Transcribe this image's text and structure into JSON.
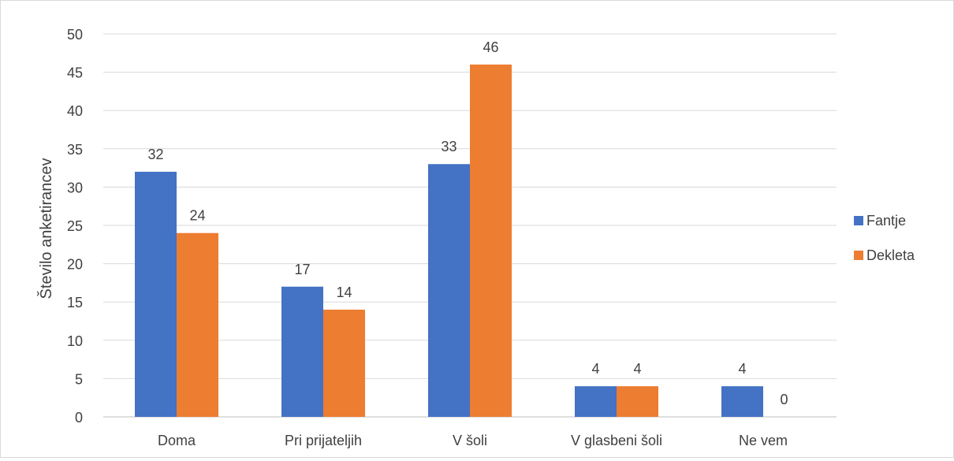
{
  "chart_data": {
    "type": "bar",
    "title": "",
    "xlabel": "",
    "ylabel": "Število anketirancev",
    "ylim": [
      0,
      50
    ],
    "ytick_step": 5,
    "grid": true,
    "legend": "right",
    "categories": [
      "Doma",
      "Pri prijateljih",
      "V šoli",
      "V glasbeni šoli",
      "Ne vem"
    ],
    "series": [
      {
        "name": "Fantje",
        "color": "#4472c4",
        "values": [
          32,
          17,
          33,
          4,
          4
        ]
      },
      {
        "name": "Dekleta",
        "color": "#ed7d31",
        "values": [
          24,
          14,
          46,
          4,
          0
        ]
      }
    ]
  }
}
